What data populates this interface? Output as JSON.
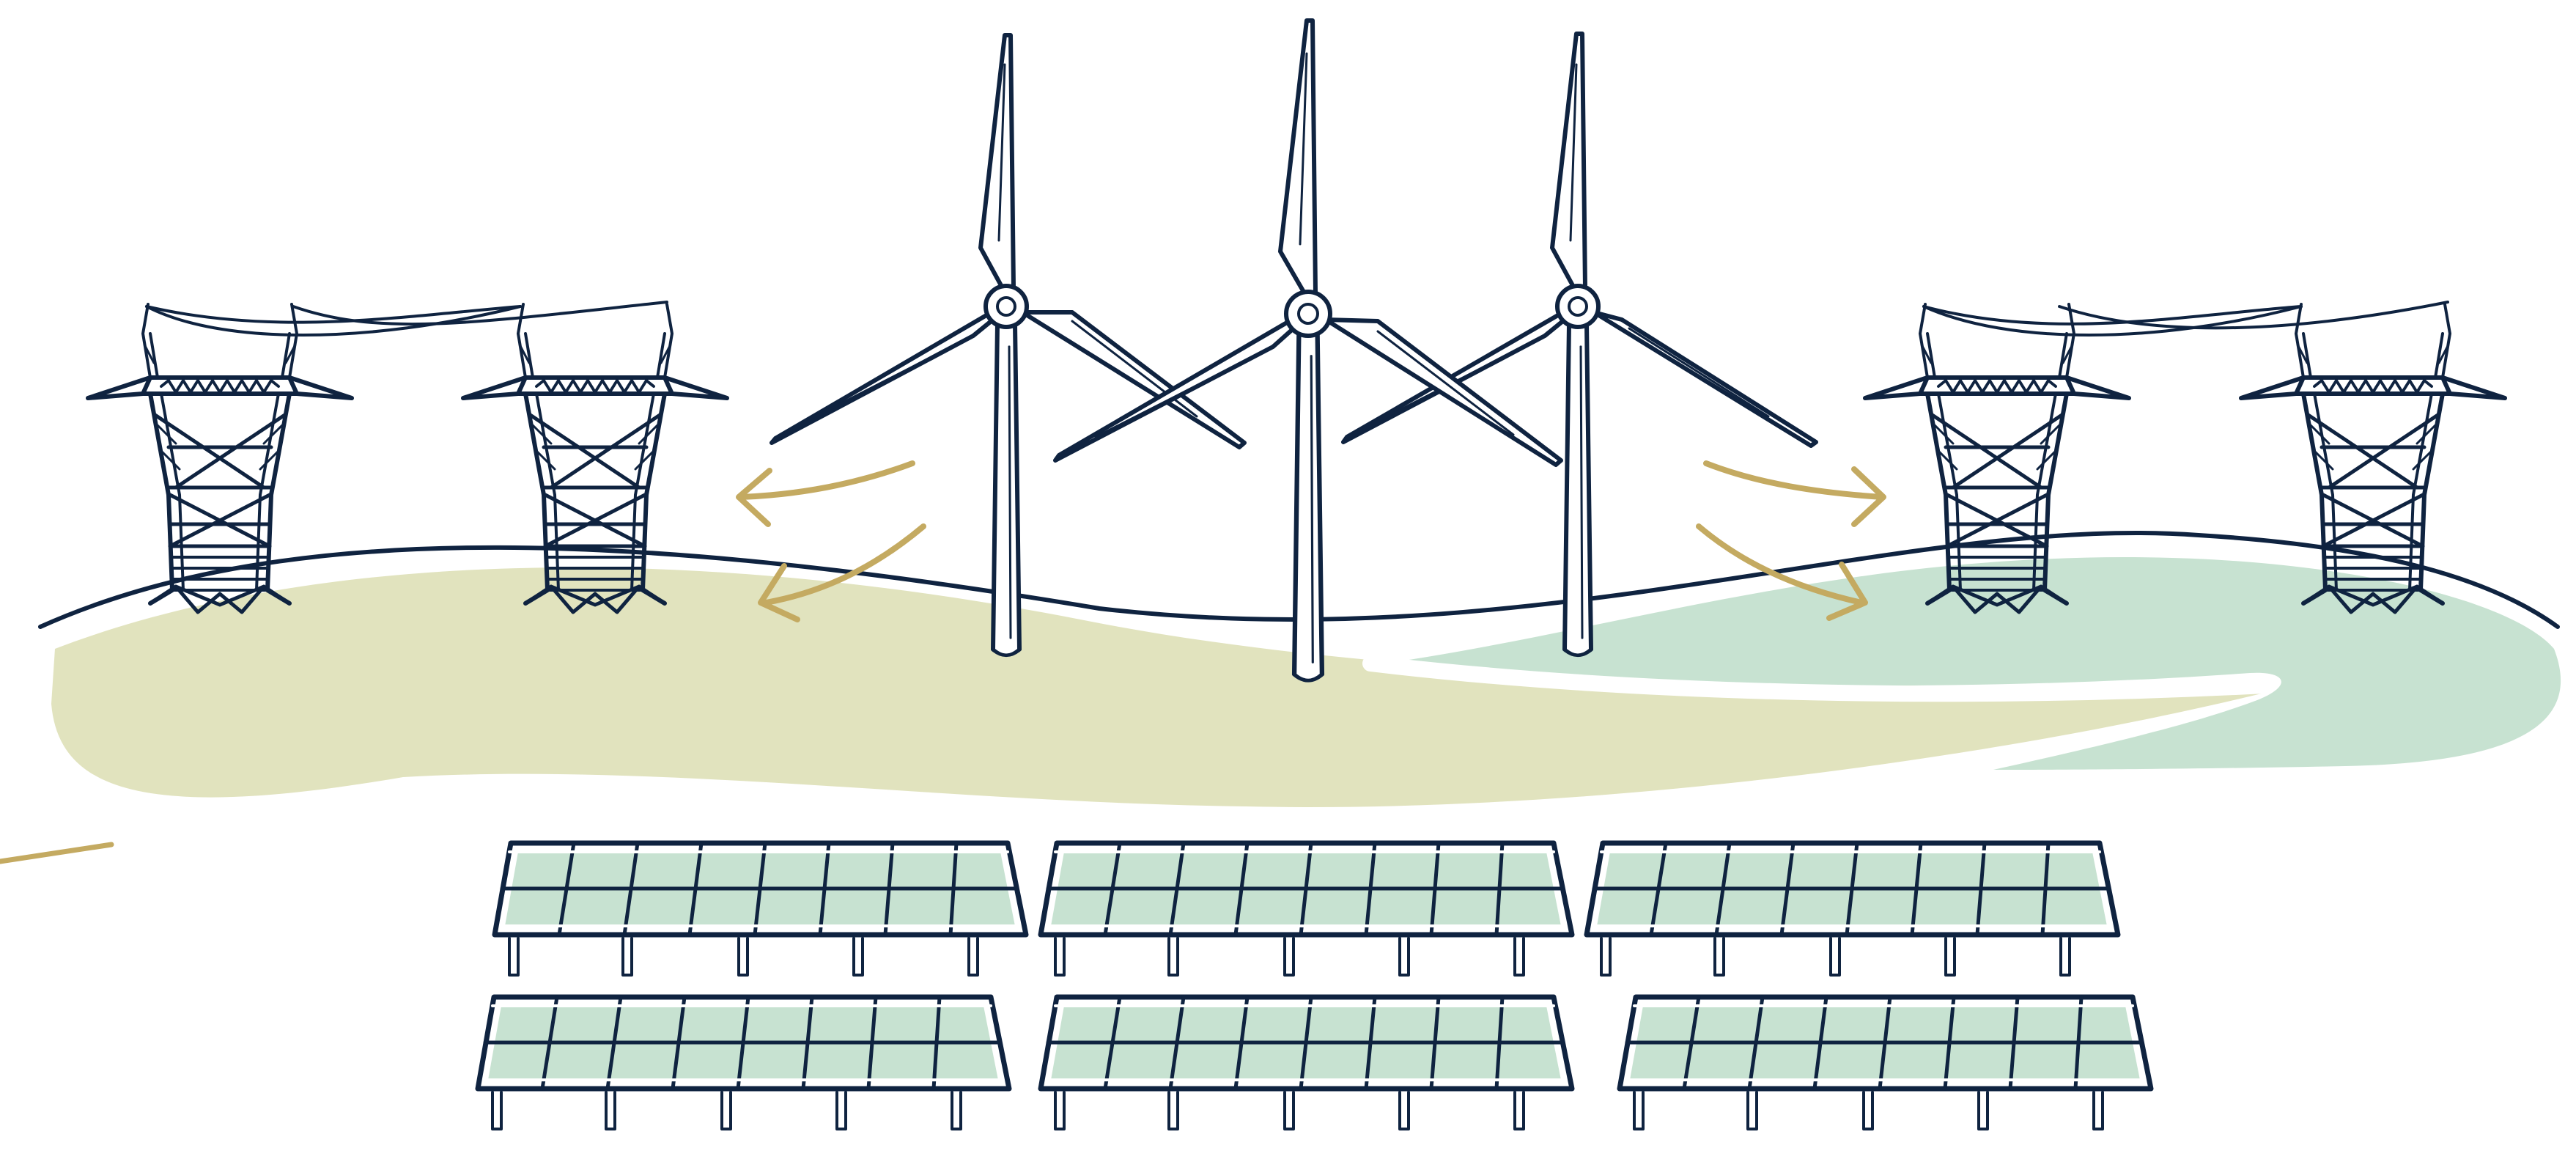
{
  "illustration": {
    "elements": {
      "wind_turbines": 3,
      "transmission_towers": 4,
      "solar_panels": 6
    },
    "colors": {
      "outline": "#0f2340",
      "olive_field": "#e1e3be",
      "green_field": "#c7e2d1",
      "arrow": "#c4aa61",
      "panel_cell": "#c7e2d1",
      "background": "#ffffff"
    },
    "icons": [
      "wind-turbine-icon",
      "transmission-tower-icon",
      "solar-panel-icon",
      "arrow-icon"
    ]
  }
}
